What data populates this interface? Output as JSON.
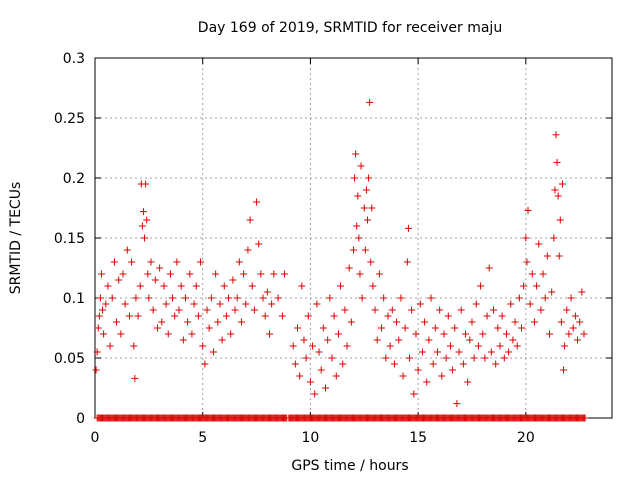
{
  "chart_data": {
    "type": "scatter",
    "title": "Day 169 of 2019, SRMTID for receiver maju",
    "xlabel": "GPS time / hours",
    "ylabel": "SRMTID / TECUs",
    "xlim": [
      0,
      24
    ],
    "ylim": [
      0,
      0.3
    ],
    "x_ticks": [
      0,
      5,
      10,
      15,
      20
    ],
    "x_tick_labels": [
      "0",
      "5",
      "10",
      "15",
      "20"
    ],
    "y_ticks": [
      0,
      0.05,
      0.1,
      0.15,
      0.2,
      0.25,
      0.3
    ],
    "y_tick_labels": [
      "0",
      "0.05",
      "0.1",
      "0.15",
      "0.2",
      "0.25",
      "0.3"
    ],
    "grid": true,
    "marker": "+",
    "color": "#dd0000",
    "series": [
      {
        "name": "SRMTID",
        "points": [
          [
            0.05,
            0.04
          ],
          [
            0.1,
            0.055
          ],
          [
            0.15,
            0.075
          ],
          [
            0.2,
            0.085
          ],
          [
            0.25,
            0.1
          ],
          [
            0.3,
            0.12
          ],
          [
            0.35,
            0.09
          ],
          [
            0.4,
            0.07
          ],
          [
            0.5,
            0.095
          ],
          [
            0.6,
            0.11
          ],
          [
            0.7,
            0.06
          ],
          [
            0.8,
            0.1
          ],
          [
            0.9,
            0.13
          ],
          [
            1.0,
            0.08
          ],
          [
            1.1,
            0.115
          ],
          [
            1.2,
            0.07
          ],
          [
            1.3,
            0.12
          ],
          [
            1.4,
            0.095
          ],
          [
            1.5,
            0.14
          ],
          [
            1.6,
            0.085
          ],
          [
            1.7,
            0.13
          ],
          [
            1.8,
            0.06
          ],
          [
            1.85,
            0.033
          ],
          [
            1.9,
            0.1
          ],
          [
            2.0,
            0.085
          ],
          [
            2.1,
            0.11
          ],
          [
            2.15,
            0.195
          ],
          [
            2.2,
            0.16
          ],
          [
            2.25,
            0.172
          ],
          [
            2.3,
            0.15
          ],
          [
            2.35,
            0.195
          ],
          [
            2.4,
            0.165
          ],
          [
            2.45,
            0.12
          ],
          [
            2.5,
            0.1
          ],
          [
            2.6,
            0.13
          ],
          [
            2.7,
            0.09
          ],
          [
            2.8,
            0.115
          ],
          [
            2.9,
            0.075
          ],
          [
            3.0,
            0.125
          ],
          [
            3.1,
            0.08
          ],
          [
            3.2,
            0.11
          ],
          [
            3.3,
            0.095
          ],
          [
            3.4,
            0.07
          ],
          [
            3.5,
            0.12
          ],
          [
            3.6,
            0.1
          ],
          [
            3.7,
            0.085
          ],
          [
            3.8,
            0.13
          ],
          [
            3.9,
            0.09
          ],
          [
            4.0,
            0.11
          ],
          [
            4.1,
            0.065
          ],
          [
            4.2,
            0.1
          ],
          [
            4.3,
            0.08
          ],
          [
            4.4,
            0.12
          ],
          [
            4.5,
            0.07
          ],
          [
            4.6,
            0.095
          ],
          [
            4.7,
            0.11
          ],
          [
            4.8,
            0.085
          ],
          [
            4.9,
            0.13
          ],
          [
            5.0,
            0.06
          ],
          [
            5.1,
            0.045
          ],
          [
            5.2,
            0.09
          ],
          [
            5.3,
            0.075
          ],
          [
            5.4,
            0.1
          ],
          [
            5.5,
            0.055
          ],
          [
            5.6,
            0.12
          ],
          [
            5.7,
            0.08
          ],
          [
            5.8,
            0.095
          ],
          [
            5.9,
            0.065
          ],
          [
            6.0,
            0.11
          ],
          [
            6.1,
            0.085
          ],
          [
            6.2,
            0.1
          ],
          [
            6.3,
            0.07
          ],
          [
            6.4,
            0.115
          ],
          [
            6.5,
            0.09
          ],
          [
            6.6,
            0.1
          ],
          [
            6.7,
            0.13
          ],
          [
            6.8,
            0.08
          ],
          [
            6.9,
            0.12
          ],
          [
            7.0,
            0.095
          ],
          [
            7.1,
            0.14
          ],
          [
            7.2,
            0.165
          ],
          [
            7.3,
            0.11
          ],
          [
            7.4,
            0.09
          ],
          [
            7.5,
            0.18
          ],
          [
            7.6,
            0.145
          ],
          [
            7.7,
            0.12
          ],
          [
            7.8,
            0.1
          ],
          [
            7.9,
            0.085
          ],
          [
            8.0,
            0.105
          ],
          [
            8.1,
            0.07
          ],
          [
            8.2,
            0.095
          ],
          [
            8.3,
            0.12
          ],
          [
            8.5,
            0.1
          ],
          [
            8.7,
            0.085
          ],
          [
            8.8,
            0.12
          ],
          [
            9.2,
            0.06
          ],
          [
            9.3,
            0.045
          ],
          [
            9.4,
            0.075
          ],
          [
            9.5,
            0.035
          ],
          [
            9.6,
            0.11
          ],
          [
            9.7,
            0.065
          ],
          [
            9.8,
            0.05
          ],
          [
            9.9,
            0.085
          ],
          [
            10.0,
            0.03
          ],
          [
            10.1,
            0.06
          ],
          [
            10.2,
            0.02
          ],
          [
            10.3,
            0.095
          ],
          [
            10.4,
            0.055
          ],
          [
            10.5,
            0.04
          ],
          [
            10.6,
            0.075
          ],
          [
            10.7,
            0.025
          ],
          [
            10.8,
            0.065
          ],
          [
            10.9,
            0.1
          ],
          [
            11.0,
            0.05
          ],
          [
            11.1,
            0.085
          ],
          [
            11.2,
            0.035
          ],
          [
            11.3,
            0.07
          ],
          [
            11.4,
            0.11
          ],
          [
            11.5,
            0.045
          ],
          [
            11.6,
            0.09
          ],
          [
            11.7,
            0.06
          ],
          [
            11.8,
            0.125
          ],
          [
            11.9,
            0.08
          ],
          [
            12.0,
            0.14
          ],
          [
            12.05,
            0.2
          ],
          [
            12.1,
            0.22
          ],
          [
            12.15,
            0.16
          ],
          [
            12.2,
            0.185
          ],
          [
            12.25,
            0.15
          ],
          [
            12.3,
            0.12
          ],
          [
            12.35,
            0.21
          ],
          [
            12.4,
            0.1
          ],
          [
            12.5,
            0.175
          ],
          [
            12.55,
            0.14
          ],
          [
            12.6,
            0.19
          ],
          [
            12.65,
            0.165
          ],
          [
            12.7,
            0.2
          ],
          [
            12.75,
            0.263
          ],
          [
            12.8,
            0.13
          ],
          [
            12.85,
            0.175
          ],
          [
            12.9,
            0.11
          ],
          [
            13.0,
            0.09
          ],
          [
            13.1,
            0.065
          ],
          [
            13.2,
            0.12
          ],
          [
            13.3,
            0.075
          ],
          [
            13.4,
            0.1
          ],
          [
            13.5,
            0.05
          ],
          [
            13.6,
            0.085
          ],
          [
            13.7,
            0.06
          ],
          [
            13.8,
            0.09
          ],
          [
            13.9,
            0.045
          ],
          [
            14.0,
            0.08
          ],
          [
            14.1,
            0.065
          ],
          [
            14.2,
            0.1
          ],
          [
            14.3,
            0.035
          ],
          [
            14.4,
            0.075
          ],
          [
            14.5,
            0.13
          ],
          [
            14.55,
            0.158
          ],
          [
            14.6,
            0.05
          ],
          [
            14.7,
            0.09
          ],
          [
            14.8,
            0.02
          ],
          [
            14.9,
            0.07
          ],
          [
            15.0,
            0.04
          ],
          [
            15.1,
            0.095
          ],
          [
            15.2,
            0.055
          ],
          [
            15.3,
            0.08
          ],
          [
            15.4,
            0.03
          ],
          [
            15.5,
            0.065
          ],
          [
            15.6,
            0.1
          ],
          [
            15.7,
            0.045
          ],
          [
            15.8,
            0.075
          ],
          [
            15.9,
            0.055
          ],
          [
            16.0,
            0.09
          ],
          [
            16.1,
            0.035
          ],
          [
            16.2,
            0.07
          ],
          [
            16.3,
            0.05
          ],
          [
            16.4,
            0.085
          ],
          [
            16.5,
            0.06
          ],
          [
            16.6,
            0.04
          ],
          [
            16.7,
            0.075
          ],
          [
            16.8,
            0.012
          ],
          [
            16.9,
            0.055
          ],
          [
            17.0,
            0.09
          ],
          [
            17.1,
            0.045
          ],
          [
            17.2,
            0.07
          ],
          [
            17.3,
            0.03
          ],
          [
            17.4,
            0.065
          ],
          [
            17.5,
            0.08
          ],
          [
            17.6,
            0.05
          ],
          [
            17.7,
            0.095
          ],
          [
            17.8,
            0.06
          ],
          [
            17.9,
            0.11
          ],
          [
            18.0,
            0.07
          ],
          [
            18.1,
            0.05
          ],
          [
            18.2,
            0.085
          ],
          [
            18.3,
            0.125
          ],
          [
            18.4,
            0.055
          ],
          [
            18.5,
            0.09
          ],
          [
            18.6,
            0.045
          ],
          [
            18.7,
            0.075
          ],
          [
            18.8,
            0.06
          ],
          [
            18.9,
            0.085
          ],
          [
            19.0,
            0.05
          ],
          [
            19.1,
            0.07
          ],
          [
            19.2,
            0.055
          ],
          [
            19.3,
            0.095
          ],
          [
            19.4,
            0.065
          ],
          [
            19.5,
            0.08
          ],
          [
            19.6,
            0.06
          ],
          [
            19.7,
            0.1
          ],
          [
            19.8,
            0.075
          ],
          [
            19.9,
            0.11
          ],
          [
            20.0,
            0.15
          ],
          [
            20.05,
            0.13
          ],
          [
            20.1,
            0.173
          ],
          [
            20.2,
            0.095
          ],
          [
            20.3,
            0.12
          ],
          [
            20.4,
            0.08
          ],
          [
            20.5,
            0.11
          ],
          [
            20.6,
            0.145
          ],
          [
            20.7,
            0.09
          ],
          [
            20.8,
            0.12
          ],
          [
            20.9,
            0.1
          ],
          [
            21.0,
            0.135
          ],
          [
            21.1,
            0.07
          ],
          [
            21.2,
            0.105
          ],
          [
            21.3,
            0.15
          ],
          [
            21.35,
            0.19
          ],
          [
            21.4,
            0.236
          ],
          [
            21.45,
            0.213
          ],
          [
            21.5,
            0.185
          ],
          [
            21.55,
            0.135
          ],
          [
            21.6,
            0.165
          ],
          [
            21.65,
            0.08
          ],
          [
            21.7,
            0.195
          ],
          [
            21.75,
            0.04
          ],
          [
            21.8,
            0.06
          ],
          [
            21.9,
            0.09
          ],
          [
            22.0,
            0.07
          ],
          [
            22.1,
            0.1
          ],
          [
            22.2,
            0.075
          ],
          [
            22.3,
            0.085
          ],
          [
            22.4,
            0.065
          ],
          [
            22.5,
            0.08
          ],
          [
            22.6,
            0.105
          ],
          [
            22.7,
            0.07
          ]
        ]
      }
    ],
    "zero_band": [
      [
        0.1,
        8.9
      ],
      [
        9.0,
        22.8
      ]
    ]
  }
}
